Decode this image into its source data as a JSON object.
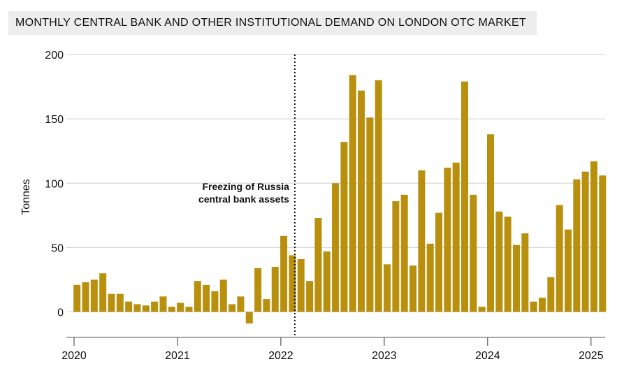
{
  "chart_data": {
    "type": "bar",
    "title": "MONTHLY CENTRAL BANK AND OTHER INSTITUTIONAL DEMAND ON LONDON OTC MARKET",
    "xlabel": "",
    "ylabel": "Tonnes",
    "ylim": [
      -20,
      200
    ],
    "yticks": [
      0,
      50,
      100,
      150,
      200
    ],
    "ytick_labels": [
      "0",
      "50",
      "100",
      "150",
      "200"
    ],
    "x_start": "2020-01",
    "xtick_labels": [
      "2020",
      "2021",
      "2022",
      "2023",
      "2024",
      "2025"
    ],
    "xtick_month_index": [
      0,
      12,
      24,
      36,
      48,
      60
    ],
    "grid": true,
    "bar_color": "#b8900d",
    "values": [
      21,
      23,
      25,
      30,
      14,
      14,
      8,
      6,
      5,
      8,
      12,
      4,
      7,
      4,
      24,
      21,
      16,
      25,
      6,
      12,
      -9,
      34,
      10,
      35,
      59,
      44,
      41,
      24,
      73,
      47,
      100,
      132,
      184,
      172,
      151,
      180,
      37,
      86,
      91,
      36,
      110,
      53,
      77,
      112,
      116,
      179,
      91,
      4,
      138,
      78,
      74,
      52,
      61,
      8,
      11,
      27,
      83,
      64,
      103,
      109,
      117,
      106
    ],
    "annotation": {
      "month_index": 25.5,
      "lines": [
        "Freezing of Russia",
        "central bank assets"
      ]
    }
  }
}
